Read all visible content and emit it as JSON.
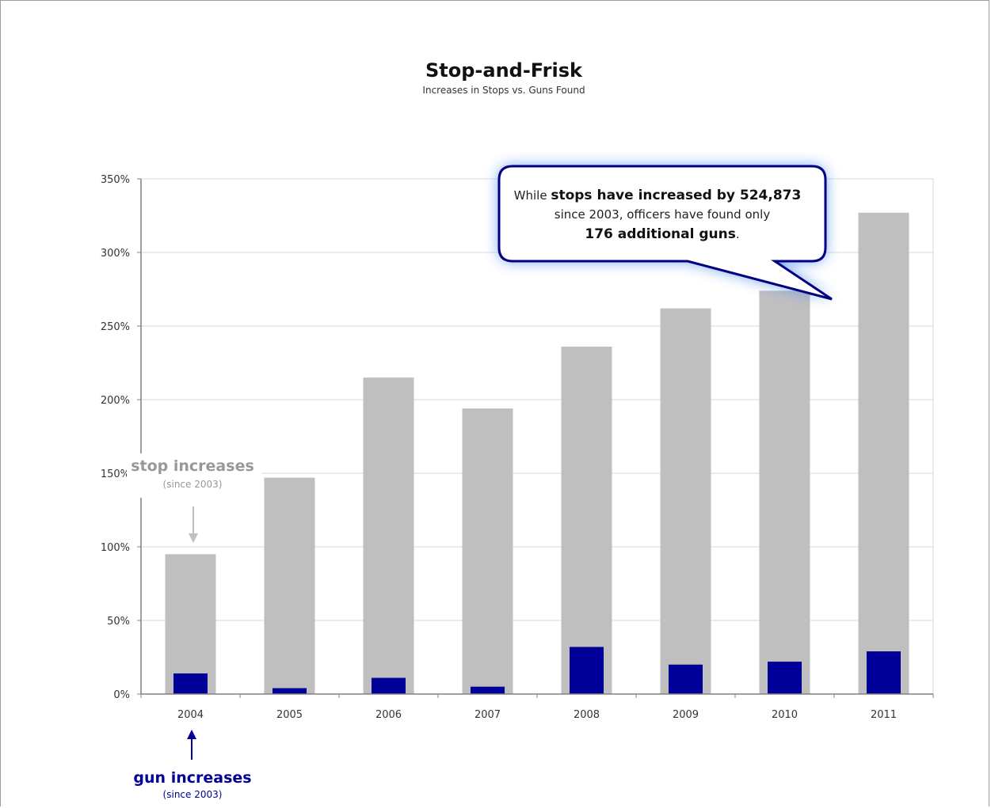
{
  "chart_data": {
    "type": "bar",
    "title": "Stop-and-Frisk",
    "subtitle": "Increases in Stops vs. Guns Found",
    "categories": [
      "2004",
      "2005",
      "2006",
      "2007",
      "2008",
      "2009",
      "2010",
      "2011"
    ],
    "series": [
      {
        "name": "stop increases",
        "color": "#bfbfbf",
        "values": [
          95,
          147,
          215,
          194,
          236,
          262,
          274,
          327
        ]
      },
      {
        "name": "gun increases",
        "color": "#000099",
        "values": [
          14,
          4,
          11,
          5,
          32,
          20,
          22,
          29
        ]
      }
    ],
    "ylim": [
      0,
      350
    ],
    "yticks": [
      0,
      50,
      100,
      150,
      200,
      250,
      300,
      350
    ],
    "ytick_labels": [
      "0%",
      "50%",
      "100%",
      "150%",
      "200%",
      "250%",
      "300%",
      "350%"
    ],
    "grid": true,
    "xlabel": "",
    "ylabel": "",
    "annotations": {
      "callout": {
        "prefix": "While ",
        "bold1": "stops have increased by 524,873",
        "line2": "since 2003, officers have found only",
        "bold2": "176 additional guns",
        "suffix": "."
      },
      "stop_label": {
        "main": "stop increases",
        "sub": "(since 2003)",
        "color": "#999999"
      },
      "gun_label": {
        "main": "gun increases",
        "sub": "(since 2003)",
        "color": "#000099"
      }
    }
  }
}
